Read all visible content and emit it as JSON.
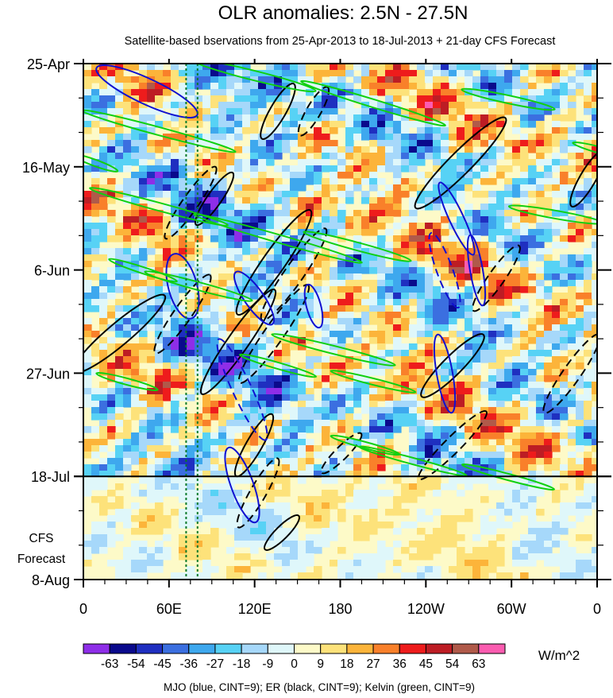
{
  "chart_data": {
    "type": "heatmap",
    "title": "OLR anomalies: 2.5N - 27.5N",
    "subtitle": "Satellite-based bservations from 25-Apr-2013 to 18-Jul-2013 + 21-day CFS Forecast",
    "x_ticks": [
      {
        "lon": 0,
        "label": "0"
      },
      {
        "lon": 60,
        "label": "60E"
      },
      {
        "lon": 120,
        "label": "120E"
      },
      {
        "lon": 180,
        "label": "180"
      },
      {
        "lon": 240,
        "label": "120W"
      },
      {
        "lon": 300,
        "label": "60W"
      },
      {
        "lon": 360,
        "label": "0"
      }
    ],
    "y_ticks": [
      {
        "day": 0,
        "label": "25-Apr"
      },
      {
        "day": 21,
        "label": "16-May"
      },
      {
        "day": 42,
        "label": "6-Jun"
      },
      {
        "day": 63,
        "label": "27-Jun"
      },
      {
        "day": 84,
        "label": "18-Jul"
      },
      {
        "day": 105,
        "label": "8-Aug"
      }
    ],
    "forecast_label_line1": "CFS",
    "forecast_label_line2": "Forecast",
    "forecast_start_day": 84,
    "marker_lons": [
      72,
      80
    ],
    "colorbar": {
      "levels": [
        "-63",
        "-54",
        "-45",
        "-36",
        "-27",
        "-18",
        "-9",
        "0",
        "9",
        "18",
        "27",
        "36",
        "45",
        "54",
        "63"
      ],
      "colors": [
        "#8e2ee8",
        "#0a0a8c",
        "#1f2fc0",
        "#3b6fe0",
        "#3ea8ee",
        "#57d2f5",
        "#a6d8fa",
        "#dff7fa",
        "#fdfac8",
        "#fde27a",
        "#fcb43a",
        "#f9802a",
        "#ee1c1c",
        "#bd1d24",
        "#b05a4a",
        "#fb5cb0"
      ],
      "units": "W/m^2"
    },
    "contour_legend": "MJO (blue, CINT=9); ER (black, CINT=9); Kelvin (green, CINT=9)",
    "series_colors": {
      "mjo": "#1010d0",
      "er": "#000000",
      "kelvin": "#10d010"
    }
  }
}
